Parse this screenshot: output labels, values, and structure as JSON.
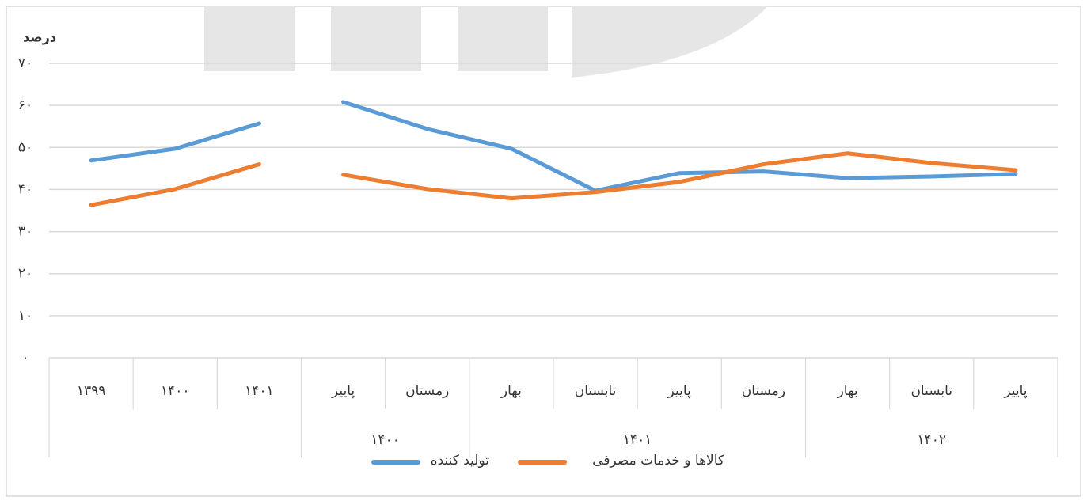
{
  "chart_data": {
    "type": "line",
    "y_label": "درصد",
    "categories": [
      "۱۳۹۹",
      "۱۴۰۰",
      "۱۴۰۱",
      "پاییز",
      "زمستان",
      "بهار",
      "تابستان",
      "پاییز",
      "زمستان",
      "بهار",
      "تابستان",
      "پاییز"
    ],
    "groups": [
      null,
      null,
      null,
      "۱۴۰۰",
      "۱۴۰۰",
      "۱۴۰۱",
      "۱۴۰۱",
      "۱۴۰۱",
      "۱۴۰۱",
      "۱۴۰۲",
      "۱۴۰۲",
      "۱۴۰۲"
    ],
    "series": [
      {
        "name": "تولید کننده",
        "color": "#5b9bd5",
        "values": [
          46.9,
          49.7,
          55.7,
          60.8,
          54.4,
          49.7,
          39.7,
          43.9,
          44.3,
          42.7,
          43.1,
          43.7
        ]
      },
      {
        "name": "کالاها و خدمات مصرفی",
        "color": "#ed7d31",
        "values": [
          36.3,
          40.1,
          46,
          43.5,
          40.1,
          37.9,
          39.4,
          41.8,
          46,
          48.6,
          46.3,
          44.6
        ]
      }
    ],
    "ylim": [
      0,
      70
    ],
    "yticks": [
      {
        "value": 0,
        "label": "۰"
      },
      {
        "value": 10,
        "label": "۱۰"
      },
      {
        "value": 20,
        "label": "۲۰"
      },
      {
        "value": 30,
        "label": "۳۰"
      },
      {
        "value": 40,
        "label": "۴۰"
      },
      {
        "value": 50,
        "label": "۵۰"
      },
      {
        "value": 60,
        "label": "۶۰"
      },
      {
        "value": 70,
        "label": "۷۰"
      }
    ],
    "grid": true
  }
}
